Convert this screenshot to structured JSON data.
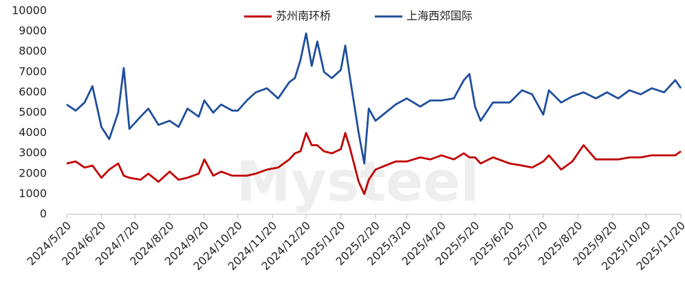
{
  "chart_data": {
    "type": "line",
    "watermark": "Mysteel",
    "x": [
      "2024/5/20",
      "2024/5/28",
      "2024/6/5",
      "2024/6/12",
      "2024/6/20",
      "2024/6/27",
      "2024/7/5",
      "2024/7/10",
      "2024/7/15",
      "2024/7/25",
      "2024/8/1",
      "2024/8/10",
      "2024/8/20",
      "2024/8/28",
      "2024/9/5",
      "2024/9/15",
      "2024/9/20",
      "2024/9/28",
      "2024/10/5",
      "2024/10/15",
      "2024/10/20",
      "2024/10/28",
      "2024/11/5",
      "2024/11/15",
      "2024/11/25",
      "2024/12/5",
      "2024/12/10",
      "2024/12/15",
      "2024/12/20",
      "2024/12/25",
      "2024/12/30",
      "2025/1/5",
      "2025/1/12",
      "2025/1/20",
      "2025/1/24",
      "2025/1/28",
      "2025/2/5",
      "2025/2/10",
      "2025/2/14",
      "2025/2/20",
      "2025/3/1",
      "2025/3/10",
      "2025/3/20",
      "2025/4/1",
      "2025/4/10",
      "2025/4/20",
      "2025/5/1",
      "2025/5/10",
      "2025/5/15",
      "2025/5/20",
      "2025/5/25",
      "2025/6/5",
      "2025/6/20",
      "2025/7/1",
      "2025/7/10",
      "2025/7/20",
      "2025/7/25",
      "2025/8/5",
      "2025/8/15",
      "2025/8/25",
      "2025/9/5",
      "2025/9/15",
      "2025/9/25",
      "2025/10/5",
      "2025/10/15",
      "2025/10/25",
      "2025/11/5",
      "2025/11/15",
      "2025/11/20"
    ],
    "series": [
      {
        "name": "苏州南环桥",
        "color": "#c00000",
        "values": [
          2500,
          2600,
          2300,
          2400,
          1800,
          2200,
          2500,
          1900,
          1800,
          1700,
          2000,
          1600,
          2100,
          1700,
          1800,
          2000,
          2700,
          1900,
          2100,
          1900,
          1900,
          1900,
          2000,
          2200,
          2300,
          2700,
          3000,
          3100,
          4000,
          3400,
          3400,
          3100,
          3000,
          3200,
          4000,
          3300,
          1600,
          1000,
          1700,
          2200,
          2400,
          2600,
          2600,
          2800,
          2700,
          2900,
          2700,
          3000,
          2800,
          2800,
          2500,
          2800,
          2500,
          2400,
          2300,
          2600,
          2900,
          2200,
          2600,
          3400,
          2700,
          2700,
          2700,
          2800,
          2800,
          2900,
          2900,
          2900,
          3100
        ]
      },
      {
        "name": "上海西郊国际",
        "color": "#1f4e9c",
        "values": [
          5400,
          5100,
          5500,
          6300,
          4300,
          3700,
          5000,
          7200,
          4200,
          4800,
          5200,
          4400,
          4600,
          4300,
          5200,
          4800,
          5600,
          5000,
          5400,
          5100,
          5100,
          5600,
          6000,
          6200,
          5700,
          6500,
          6700,
          7600,
          8900,
          7300,
          8500,
          7000,
          6700,
          7100,
          8300,
          6800,
          4000,
          2500,
          5200,
          4600,
          5000,
          5400,
          5700,
          5300,
          5600,
          5600,
          5700,
          6600,
          6900,
          5300,
          4600,
          5500,
          5500,
          6100,
          5900,
          4900,
          6100,
          5500,
          5800,
          6000,
          5700,
          6000,
          5700,
          6100,
          5900,
          6200,
          6000,
          6600,
          6200
        ]
      }
    ],
    "xlim": [
      "2024/5/20",
      "2025/11/20"
    ],
    "xticks": [
      "2024/5/20",
      "2024/6/20",
      "2024/7/20",
      "2024/8/20",
      "2024/9/20",
      "2024/10/20",
      "2024/11/20",
      "2024/12/20",
      "2025/1/20",
      "2025/2/20",
      "2025/3/20",
      "2025/4/20",
      "2025/5/20",
      "2025/6/20",
      "2025/7/20",
      "2025/8/20",
      "2025/9/20",
      "2025/10/20",
      "2025/11/20"
    ],
    "ylim": [
      0,
      10000
    ],
    "yticks": [
      0,
      1000,
      2000,
      3000,
      4000,
      5000,
      6000,
      7000,
      8000,
      9000,
      10000
    ],
    "legend": "top"
  }
}
